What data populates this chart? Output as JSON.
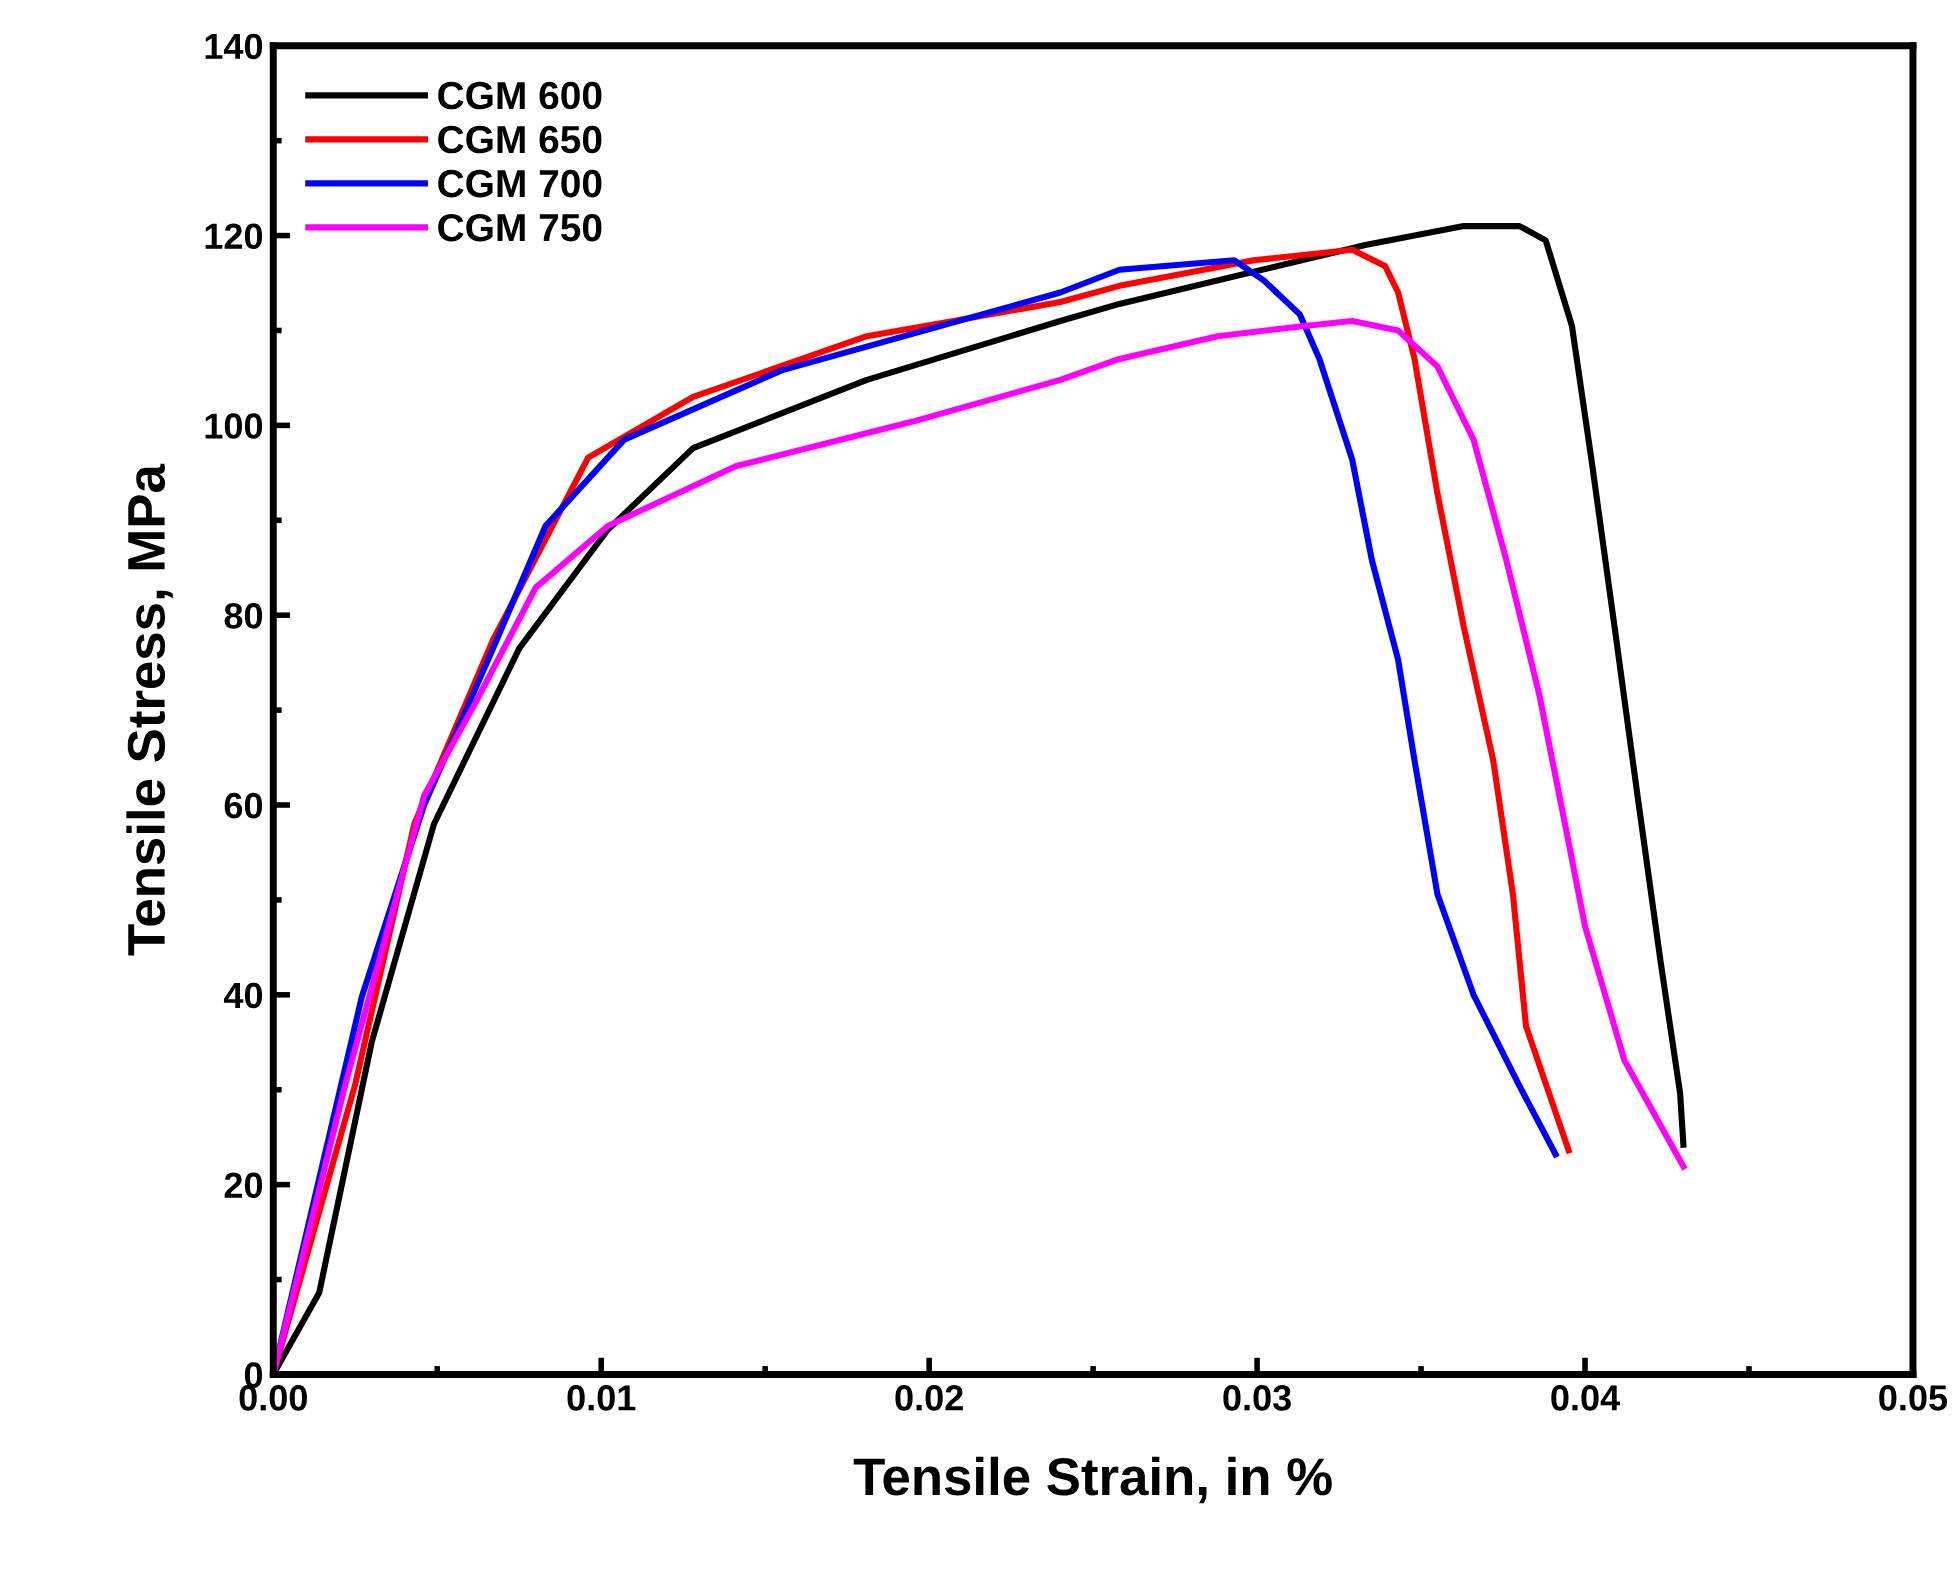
{
  "chart_data": {
    "type": "line",
    "xlabel": "Tensile Strain, in %",
    "ylabel": "Tensile Stress, MPa",
    "xlim": [
      0,
      0.05
    ],
    "xticks": [
      {
        "value": 0,
        "label": "0.00"
      },
      {
        "value": 0.01,
        "label": "0.01"
      },
      {
        "value": 0.02,
        "label": "0.02"
      },
      {
        "value": 0.03,
        "label": "0.03"
      },
      {
        "value": 0.04,
        "label": "0.04"
      },
      {
        "value": 0.05,
        "label": "0.05"
      }
    ],
    "ylim": [
      0,
      140
    ],
    "yticks": [
      0,
      20,
      40,
      60,
      80,
      100,
      120,
      140
    ],
    "grid": false,
    "legend": "top left",
    "marker": "none",
    "line_style": "solid",
    "series": [
      {
        "name": "CGM 600",
        "color": "#000000",
        "x": [
          0,
          0.0014,
          0.003,
          0.0049,
          0.0075,
          0.0102,
          0.0128,
          0.0181,
          0.024,
          0.0258,
          0.0333,
          0.0363,
          0.038,
          0.0388,
          0.0396,
          0.0402,
          0.0409,
          0.0416,
          0.0423,
          0.0429,
          0.043
        ],
        "values": [
          0,
          8.6,
          35,
          58,
          76.5,
          89,
          97.6,
          104.8,
          111,
          112.8,
          119,
          121,
          121,
          119.5,
          110.5,
          96.3,
          78.8,
          61,
          43.6,
          29.6,
          24.2
        ]
      },
      {
        "name": "CGM 650",
        "color": "#ff0000",
        "x": [
          0,
          0.0025,
          0.0043,
          0.0067,
          0.0096,
          0.0128,
          0.0181,
          0.024,
          0.0258,
          0.0299,
          0.0329,
          0.0339,
          0.0343,
          0.0348,
          0.0355,
          0.0363,
          0.0372,
          0.0378,
          0.0382,
          0.0395
        ],
        "values": [
          0,
          30.6,
          58,
          77.4,
          96.6,
          103,
          109.4,
          113,
          114.7,
          117.4,
          118.5,
          116.8,
          114,
          107,
          92.8,
          78.8,
          64.7,
          50.6,
          36.7,
          23.6
        ]
      },
      {
        "name": "CGM 700",
        "color": "#0000ff",
        "x": [
          0,
          0.0027,
          0.0046,
          0.0067,
          0.0083,
          0.0107,
          0.0155,
          0.024,
          0.0258,
          0.0293,
          0.0302,
          0.0313,
          0.0319,
          0.0329,
          0.0335,
          0.0343,
          0.0348,
          0.0355,
          0.0366,
          0.038,
          0.0391
        ],
        "values": [
          0,
          39.8,
          60,
          76.5,
          89.4,
          98.5,
          105.8,
          114,
          116.4,
          117.4,
          115.3,
          111.7,
          107,
          96.4,
          85.8,
          75.3,
          64.7,
          50.6,
          40,
          30.4,
          23.2
        ]
      },
      {
        "name": "CGM 750",
        "color": "#ff00ff",
        "x": [
          0,
          0.0022,
          0.0046,
          0.0062,
          0.008,
          0.0102,
          0.0141,
          0.0195,
          0.024,
          0.0258,
          0.0288,
          0.0315,
          0.0329,
          0.0343,
          0.0355,
          0.0366,
          0.0376,
          0.0386,
          0.0394,
          0.04,
          0.0412,
          0.043
        ],
        "values": [
          0,
          30.6,
          61,
          71,
          82.9,
          89.4,
          95.7,
          100.4,
          104.8,
          107,
          109.4,
          110.5,
          111,
          110,
          106.2,
          98.5,
          85.8,
          71.7,
          57.8,
          47.2,
          33.1,
          21.9
        ]
      }
    ]
  }
}
